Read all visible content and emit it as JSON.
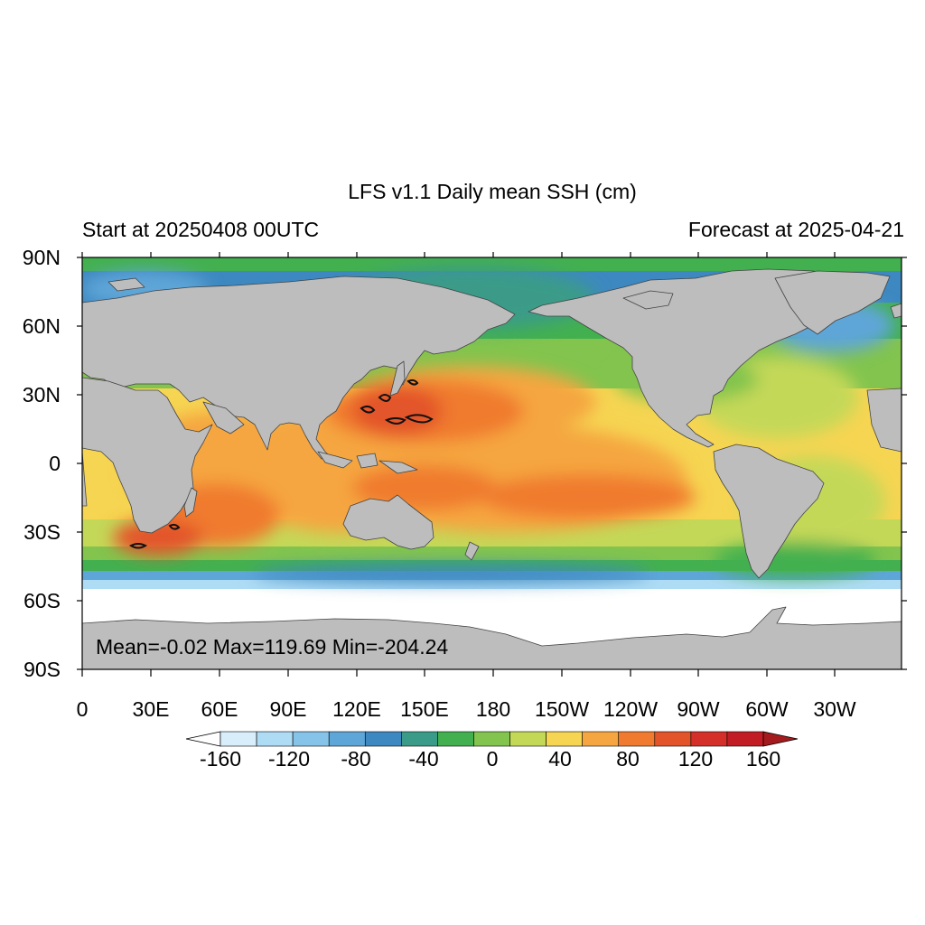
{
  "header": {
    "title": "LFS v1.1 Daily mean SSH (cm)",
    "left_subtitle": "Start at 20250408 00UTC",
    "right_subtitle": "Forecast at 2025-04-21"
  },
  "stats": {
    "text": "Mean=-0.02  Max=119.69  Min=-204.24",
    "mean": -0.02,
    "max": 119.69,
    "min": -204.24
  },
  "axes": {
    "lat_labels": [
      "90N",
      "60N",
      "30N",
      "0",
      "30S",
      "60S",
      "90S"
    ],
    "lon_labels": [
      "0",
      "30E",
      "60E",
      "90E",
      "120E",
      "150E",
      "180",
      "150W",
      "120W",
      "90W",
      "60W",
      "30W"
    ]
  },
  "colorbar": {
    "labels": [
      "-160",
      "-120",
      "-80",
      "-40",
      "0",
      "40",
      "80",
      "120",
      "160"
    ],
    "colors": [
      "#ffffff",
      "#d8eefa",
      "#afdcf5",
      "#85c4e8",
      "#5ea6d8",
      "#3d88c0",
      "#3a9b88",
      "#43b04f",
      "#82c44e",
      "#c4d858",
      "#f6d552",
      "#f5a640",
      "#f07a2f",
      "#e3542a",
      "#d42f28",
      "#c21d24",
      "#a51b1d"
    ]
  },
  "palette": {
    "land": "#bdbdbd",
    "coast": "#444444"
  }
}
